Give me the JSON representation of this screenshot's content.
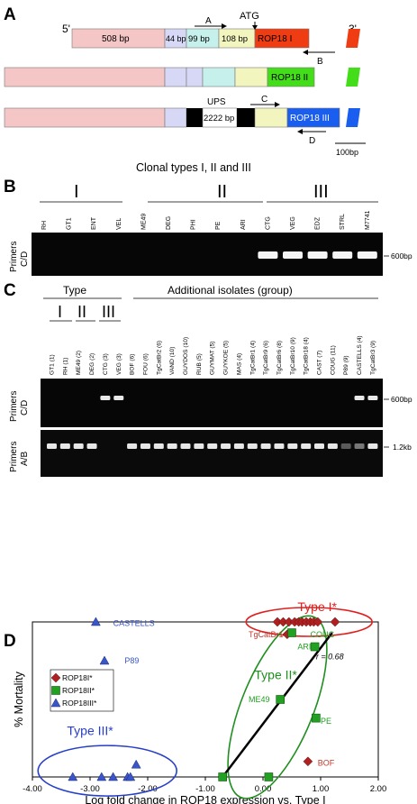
{
  "panels": {
    "a": "A",
    "b": "B",
    "c": "C",
    "d": "D"
  },
  "panel_a": {
    "five_prime": "5'",
    "three_prime": "3'",
    "atg": "ATG",
    "primer_a": "A",
    "primer_b": "B",
    "primer_c": "C",
    "primer_d": "D",
    "seg_508": "508 bp",
    "seg_44": "44 bp",
    "seg_99": "99 bp",
    "seg_108": "108 bp",
    "rop_i": "ROP18 I",
    "rop_ii": "ROP18 II",
    "rop_iii": "ROP18 III",
    "ups": "UPS",
    "ins_2222": "2222 bp",
    "scale": "100bp",
    "colors": {
      "utr": "#f5c6c6",
      "seg44": "#d6d8f5",
      "seg99": "#c6f0ec",
      "seg108": "#f3f5bf",
      "rop1": "#f03c12",
      "rop2": "#44dd1a",
      "rop3": "#1a5ef0"
    }
  },
  "panel_b": {
    "title": "Clonal  types I, II and III",
    "group_i": "I",
    "group_ii": "II",
    "group_iii": "III",
    "lanes": [
      "RH",
      "GT1",
      "ENT",
      "VEL",
      "ME49",
      "DEG",
      "PHI",
      "PE",
      "ARI",
      "CTG",
      "VEG",
      "EDZ",
      "STRL",
      "M7741"
    ],
    "row_label_1": "Primers",
    "row_label_2": "C/D",
    "size": "600bp"
  },
  "panel_c": {
    "type_label": "Type",
    "group_i": "I",
    "group_ii": "II",
    "group_iii": "III",
    "additional": "Additional isolates (group)",
    "lanes": [
      "GT1 (1)",
      "RH (1)",
      "ME49 (2)",
      "DEG (2)",
      "CTG (3)",
      "VEG (3)",
      "BOF (6)",
      "FOU (6)",
      "TgCatBr2 (6)",
      "VAND (10)",
      "GUYDOS (10)",
      "RUB (5)",
      "GUYMAT (5)",
      "GUYKOE (5)",
      "MAS (4)",
      "TgCatBr1 (4)",
      "TgCatBr9 (6)",
      "TgCatBr6 (8)",
      "TgCatBr10 (9)",
      "TgCatBr18 (4)",
      "CAST (7)",
      "COUG (11)",
      "P89 (9)",
      "CASTELLS (4)",
      "TgCatBr3 (9)"
    ],
    "row1_label_1": "Primers",
    "row1_label_2": "C/D",
    "row1_size": "600bp",
    "row2_label_1": "Primers",
    "row2_label_2": "A/B",
    "row2_size": "1.2kb"
  },
  "chart_data": {
    "type": "scatter",
    "xlabel": "Log fold change in ROP18 expression vs. Type I",
    "ylabel": "% Mortality",
    "xlim": [
      -4.0,
      2.0
    ],
    "ylim": [
      0,
      100
    ],
    "x_ticks": [
      "-4.00",
      "-3.00",
      "-2.00",
      "-1.00",
      "0.00",
      "1.00",
      "2.00"
    ],
    "legend": [
      "ROP18I*",
      "ROP18II*",
      "ROP18III*"
    ],
    "series": [
      {
        "name": "ROP18I*",
        "color": "#b02020",
        "marker": "diamond",
        "x": [
          0.25,
          0.35,
          0.45,
          0.55,
          0.62,
          0.68,
          0.75,
          0.82,
          0.88,
          0.95,
          1.25,
          0.42,
          0.78
        ],
        "y": [
          100,
          100,
          100,
          100,
          100,
          100,
          100,
          100,
          100,
          100,
          100,
          92,
          10
        ]
      },
      {
        "name": "ROP18II*",
        "color": "#22a022",
        "marker": "square",
        "x": [
          0.5,
          0.9,
          0.3,
          0.92,
          -0.7,
          0.1
        ],
        "y": [
          93,
          84,
          50,
          38,
          0,
          0
        ]
      },
      {
        "name": "ROP18III*",
        "color": "#3a55c8",
        "marker": "triangle",
        "x": [
          -2.9,
          -2.75,
          -3.3,
          -2.8,
          -2.6,
          -2.35,
          -2.2,
          -2.3
        ],
        "y": [
          100,
          75,
          0,
          0,
          0,
          0,
          8,
          0
        ]
      }
    ],
    "point_labels": [
      {
        "text": "CASTELLS",
        "x": -2.6,
        "y": 99,
        "color": "#3a55c8"
      },
      {
        "text": "P89",
        "x": -2.4,
        "y": 75,
        "color": "#3a55c8"
      },
      {
        "text": "TgCatBr1",
        "x": -0.25,
        "y": 92,
        "color": "#c0392b"
      },
      {
        "text": "COUG",
        "x": 0.82,
        "y": 92,
        "color": "#22a022"
      },
      {
        "text": "ARI",
        "x": 0.6,
        "y": 84,
        "color": "#22a022"
      },
      {
        "text": "ME49",
        "x": -0.25,
        "y": 50,
        "color": "#22a022"
      },
      {
        "text": "PE",
        "x": 1.0,
        "y": 36,
        "color": "#22a022"
      },
      {
        "text": "BOF",
        "x": 0.95,
        "y": 9,
        "color": "#c0392b"
      }
    ],
    "annotations": {
      "type_i": "Type I*",
      "type_ii": "Type II*",
      "type_iii": "Type III*",
      "r": "r = 0.68"
    },
    "regression_line": {
      "x": [
        -0.7,
        1.2
      ],
      "y": [
        0,
        93
      ]
    },
    "grid": false
  }
}
